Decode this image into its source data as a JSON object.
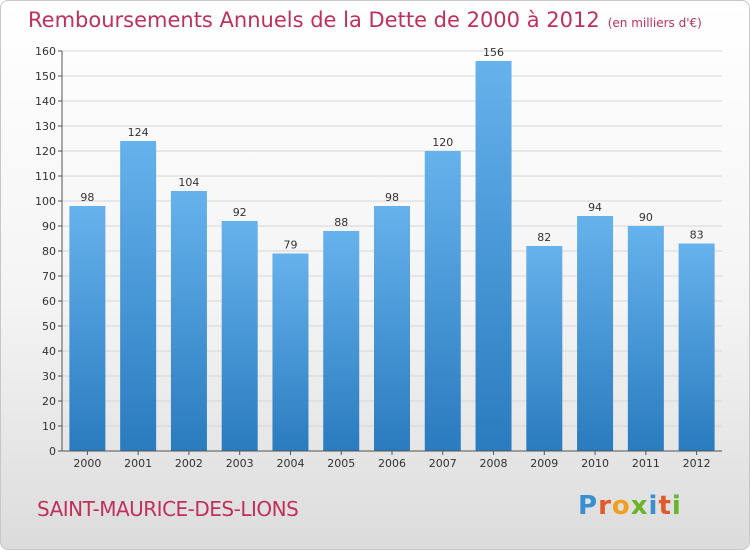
{
  "header": {
    "title": "Remboursements Annuels de la Dette de 2000 à 2012",
    "unit": "(en milliers d'€)"
  },
  "footer": {
    "commune": "SAINT-MAURICE-DES-LIONS",
    "logo_letters": [
      {
        "ch": "P",
        "color": "#3a8fd0"
      },
      {
        "ch": "r",
        "color": "#e05a2a"
      },
      {
        "ch": "o",
        "color": "#f0a020"
      },
      {
        "ch": "x",
        "color": "#6ab42a"
      },
      {
        "ch": "i",
        "color": "#3a8fd0"
      },
      {
        "ch": "t",
        "color": "#e05a2a"
      },
      {
        "ch": "i",
        "color": "#6ab42a"
      }
    ]
  },
  "chart_data": {
    "type": "bar",
    "title": "Remboursements Annuels de la Dette de 2000 à 2012",
    "categories": [
      "2000",
      "2001",
      "2002",
      "2003",
      "2004",
      "2005",
      "2006",
      "2007",
      "2008",
      "2009",
      "2010",
      "2011",
      "2012"
    ],
    "values": [
      98,
      124,
      104,
      92,
      79,
      88,
      98,
      120,
      156,
      82,
      94,
      90,
      83
    ],
    "ylim": [
      0,
      160
    ],
    "yticks": [
      0,
      10,
      20,
      30,
      40,
      50,
      60,
      70,
      80,
      90,
      100,
      110,
      120,
      130,
      140,
      150,
      160
    ],
    "grid": true,
    "bar_color_top": "#66b2ec",
    "bar_color_bottom": "#2a7bbf"
  }
}
